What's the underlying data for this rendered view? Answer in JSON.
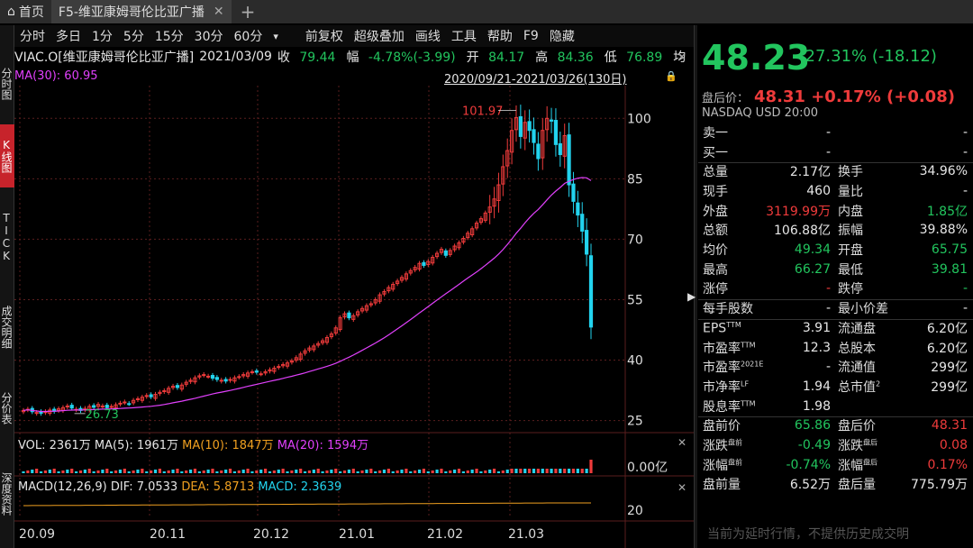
{
  "tabs": {
    "home": "首页",
    "active": "F5-维亚康姆哥伦比亚广播"
  },
  "left_tabs": [
    "分时图",
    "K线图",
    "TICK",
    "成交明细",
    "分价表",
    "深度资料"
  ],
  "toolbar": {
    "periods": [
      "分时",
      "多日",
      "1分",
      "5分",
      "15分",
      "30分",
      "60分"
    ],
    "more": "▾",
    "tools": [
      "前复权",
      "超级叠加",
      "画线",
      "工具",
      "帮助",
      "F9",
      "隐藏"
    ]
  },
  "info": {
    "name": "VIAC.O[维亚康姆哥伦比亚广播]",
    "date": "2021/03/09",
    "close_label": "收",
    "close": "79.44",
    "chg_label": "幅",
    "chg": "-4.78%(-3.99)",
    "open_label": "开",
    "open": "84.17",
    "high_label": "高",
    "high": "84.36",
    "low_label": "低",
    "low": "76.89",
    "avg_label": "均"
  },
  "ma30": "MA(30): 60.95",
  "range": "2020/09/21-2021/03/26(130日)",
  "chart_data": {
    "type": "candlestick",
    "y_axis_ticks": [
      25,
      40,
      55,
      70,
      85,
      100
    ],
    "ylim": [
      22,
      107
    ],
    "x_tick_labels": [
      "20.09",
      "20.11",
      "20.12",
      "21.01",
      "21.02",
      "21.03"
    ],
    "annotations": {
      "high_label": "101.97",
      "low_label": "26.73"
    },
    "closes": [
      27.5,
      27.8,
      27.2,
      27.0,
      26.8,
      27.2,
      27.6,
      27.3,
      27.9,
      28.2,
      28.6,
      28.1,
      27.8,
      27.5,
      28.0,
      28.5,
      28.3,
      29.0,
      28.6,
      28.2,
      28.5,
      28.9,
      29.3,
      29.6,
      29.2,
      30.0,
      30.4,
      30.8,
      31.2,
      30.9,
      31.5,
      32.0,
      32.4,
      33.0,
      33.5,
      33.2,
      33.8,
      34.5,
      35.0,
      35.6,
      36.1,
      36.4,
      36.0,
      35.5,
      35.2,
      35.0,
      34.8,
      35.2,
      35.6,
      35.9,
      36.4,
      36.8,
      37.1,
      37.0,
      36.6,
      37.1,
      37.6,
      38.0,
      38.4,
      38.9,
      39.3,
      39.8,
      40.6,
      41.5,
      42.3,
      43.0,
      43.5,
      44.1,
      44.8,
      45.6,
      46.5,
      48.0,
      50.5,
      51.5,
      50.5,
      51.0,
      52.0,
      52.8,
      53.5,
      54.0,
      55.0,
      56.2,
      57.0,
      58.0,
      58.8,
      59.6,
      60.5,
      61.4,
      62.2,
      63.0,
      64.0,
      63.5,
      64.5,
      65.5,
      66.5,
      67.5,
      66.0,
      67.2,
      68.3,
      69.1,
      70.2,
      71.5,
      72.6,
      74.0,
      75.1,
      76.5,
      78.0,
      80.0,
      83.5,
      88.0,
      92.0,
      97.0,
      100.2,
      95.5,
      99.0,
      97.0,
      94.0,
      90.0,
      97.0,
      100.0,
      99.3,
      93.5,
      91.0,
      95.7,
      83.5,
      79.4,
      76.0,
      72.0,
      66.3,
      48.2
    ],
    "ma30_values": "computed from closes",
    "volume": {
      "label": "VOL: 2361万",
      "ma5": "MA(5): 1961万",
      "ma10": "MA(10): 1847万",
      "ma20": "MA(20): 1594万",
      "axis_label": "0.00亿"
    },
    "macd": {
      "label": "MACD(12,26,9)",
      "dif": "DIF: 7.0533",
      "dea": "DEA: 5.8713",
      "macd": "MACD: 2.3639",
      "axis_label": "20"
    }
  },
  "colors": {
    "up": "#ef3b3b",
    "down": "#22d3ee",
    "ma30": "#e040fb",
    "grid": "#5a1e1e",
    "green": "#22c55e",
    "red": "#ef3b3b"
  },
  "quote": {
    "price": "48.23",
    "change": "-27.31% (-18.12)",
    "ah_label": "盘后价：",
    "ah_value": "48.31 +0.17% (+0.08)",
    "exchange": "NASDAQ  USD  20:00",
    "rows": [
      {
        "l1": "卖一",
        "v1": "-",
        "l2": "",
        "v2": "-",
        "v1c": "white",
        "v2c": "white"
      },
      {
        "l1": "买一",
        "v1": "-",
        "l2": "",
        "v2": "-",
        "v1c": "white",
        "v2c": "white"
      },
      {
        "l1": "总量",
        "v1": "2.17亿",
        "l2": "换手",
        "v2": "34.96%",
        "v1c": "white",
        "v2c": "white"
      },
      {
        "l1": "现手",
        "v1": "460",
        "l2": "量比",
        "v2": "-",
        "v1c": "white",
        "v2c": "white"
      },
      {
        "l1": "外盘",
        "v1": "3119.99万",
        "l2": "内盘",
        "v2": "1.85亿",
        "v1c": "red",
        "v2c": "green"
      },
      {
        "l1": "总额",
        "v1": "106.88亿",
        "l2": "振幅",
        "v2": "39.88%",
        "v1c": "white",
        "v2c": "white"
      },
      {
        "l1": "均价",
        "v1": "49.34",
        "l2": "开盘",
        "v2": "65.75",
        "v1c": "green",
        "v2c": "green"
      },
      {
        "l1": "最高",
        "v1": "66.27",
        "l2": "最低",
        "v2": "39.81",
        "v1c": "green",
        "v2c": "green"
      },
      {
        "l1": "涨停",
        "v1": "-",
        "l2": "跌停",
        "v2": "-",
        "v1c": "red",
        "v2c": "green"
      },
      {
        "l1": "每手股数",
        "v1": "-",
        "l2": "最小价差",
        "v2": "-",
        "v1c": "white",
        "v2c": "white"
      },
      {
        "l1": "EPS",
        "l1sup": "TTM",
        "v1": "3.91",
        "l2": "流通盘",
        "v2": "6.20亿",
        "v1c": "white",
        "v2c": "white"
      },
      {
        "l1": "市盈率",
        "l1sup": "TTM",
        "v1": "12.3",
        "l2": "总股本",
        "v2": "6.20亿",
        "v1c": "white",
        "v2c": "white"
      },
      {
        "l1": "市盈率",
        "l1sup": "2021E",
        "v1": "-",
        "l2": "流通值",
        "v2": "299亿",
        "v1c": "white",
        "v2c": "white"
      },
      {
        "l1": "市净率",
        "l1sup": "LF",
        "v1": "1.94",
        "l2": "总市值",
        "l2sup": "2",
        "v2": "299亿",
        "v1c": "white",
        "v2c": "white"
      },
      {
        "l1": "股息率",
        "l1sup": "TTM",
        "v1": "1.98",
        "l2": "",
        "v2": "",
        "v1c": "white",
        "v2c": "white"
      },
      {
        "l1": "盘前价",
        "v1": "65.86",
        "l2": "盘后价",
        "v2": "48.31",
        "v1c": "green",
        "v2c": "red"
      },
      {
        "l1": "涨跌",
        "l1sup": "盘前",
        "v1": "-0.49",
        "l2": "涨跌",
        "l2sup": "盘后",
        "v2": "0.08",
        "v1c": "green",
        "v2c": "red"
      },
      {
        "l1": "涨幅",
        "l1sup": "盘前",
        "v1": "-0.74%",
        "l2": "涨幅",
        "l2sup": "盘后",
        "v2": "0.17%",
        "v1c": "green",
        "v2c": "red"
      },
      {
        "l1": "盘前量",
        "v1": "6.52万",
        "l2": "盘后量",
        "v2": "775.79万",
        "v1c": "white",
        "v2c": "white"
      }
    ],
    "notice": "当前为延时行情，不提供历史成交明"
  }
}
